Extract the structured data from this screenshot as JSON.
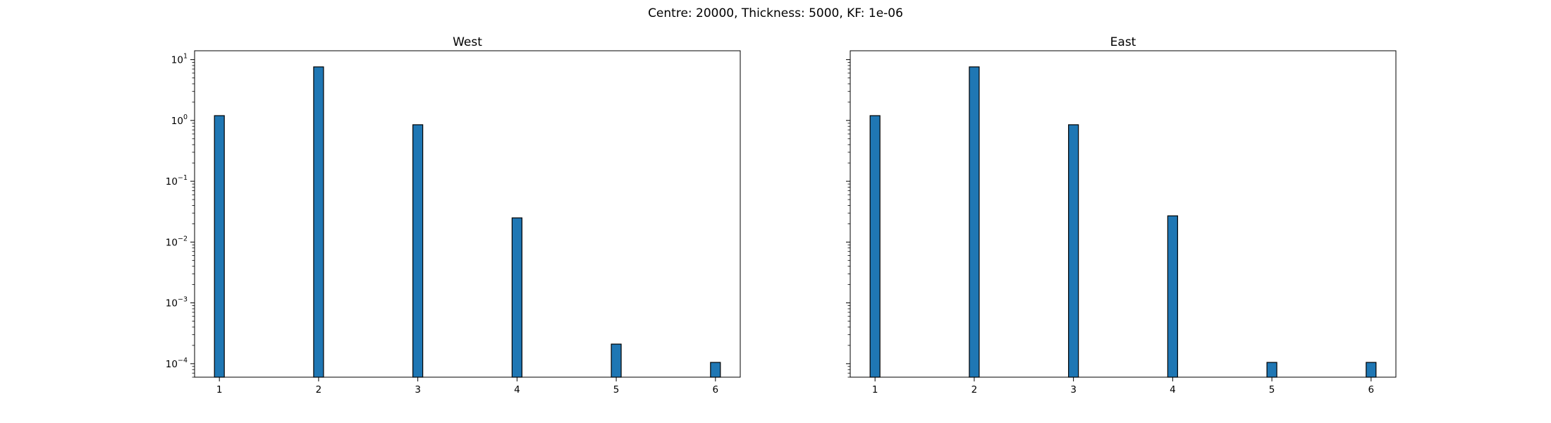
{
  "suptitle": "Centre: 20000, Thickness: 5000, KF: 1e-06",
  "chart_data": [
    {
      "type": "bar",
      "title": "West",
      "xlabel": "",
      "ylabel": "",
      "yscale": "log",
      "ylim": [
        6e-05,
        14
      ],
      "xlim": [
        0.75,
        6.25
      ],
      "x_ticks": [
        "1",
        "2",
        "3",
        "4",
        "5",
        "6"
      ],
      "y_ticks": [
        {
          "base": "10",
          "exp": "1",
          "value": 10
        },
        {
          "base": "10",
          "exp": "0",
          "value": 1
        },
        {
          "base": "10",
          "exp": "−1",
          "value": 0.1
        },
        {
          "base": "10",
          "exp": "−2",
          "value": 0.01
        },
        {
          "base": "10",
          "exp": "−3",
          "value": 0.001
        },
        {
          "base": "10",
          "exp": "−4",
          "value": 0.0001
        }
      ],
      "y_tick_labels_visible": true,
      "bar_color": "#1f77b4",
      "edge_color": "#000000",
      "categories": [
        1,
        2,
        3,
        4,
        5,
        6
      ],
      "values": [
        1.2,
        7.6,
        0.85,
        0.025,
        0.00021,
        0.000105
      ]
    },
    {
      "type": "bar",
      "title": "East",
      "xlabel": "",
      "ylabel": "",
      "yscale": "log",
      "ylim": [
        6e-05,
        14
      ],
      "xlim": [
        0.75,
        6.25
      ],
      "x_ticks": [
        "1",
        "2",
        "3",
        "4",
        "5",
        "6"
      ],
      "y_ticks": [
        {
          "base": "10",
          "exp": "1",
          "value": 10
        },
        {
          "base": "10",
          "exp": "0",
          "value": 1
        },
        {
          "base": "10",
          "exp": "−1",
          "value": 0.1
        },
        {
          "base": "10",
          "exp": "−2",
          "value": 0.01
        },
        {
          "base": "10",
          "exp": "−3",
          "value": 0.001
        },
        {
          "base": "10",
          "exp": "−4",
          "value": 0.0001
        }
      ],
      "y_tick_labels_visible": false,
      "bar_color": "#1f77b4",
      "edge_color": "#000000",
      "categories": [
        1,
        2,
        3,
        4,
        5,
        6
      ],
      "values": [
        1.2,
        7.6,
        0.85,
        0.027,
        0.000105,
        0.000105
      ]
    }
  ]
}
